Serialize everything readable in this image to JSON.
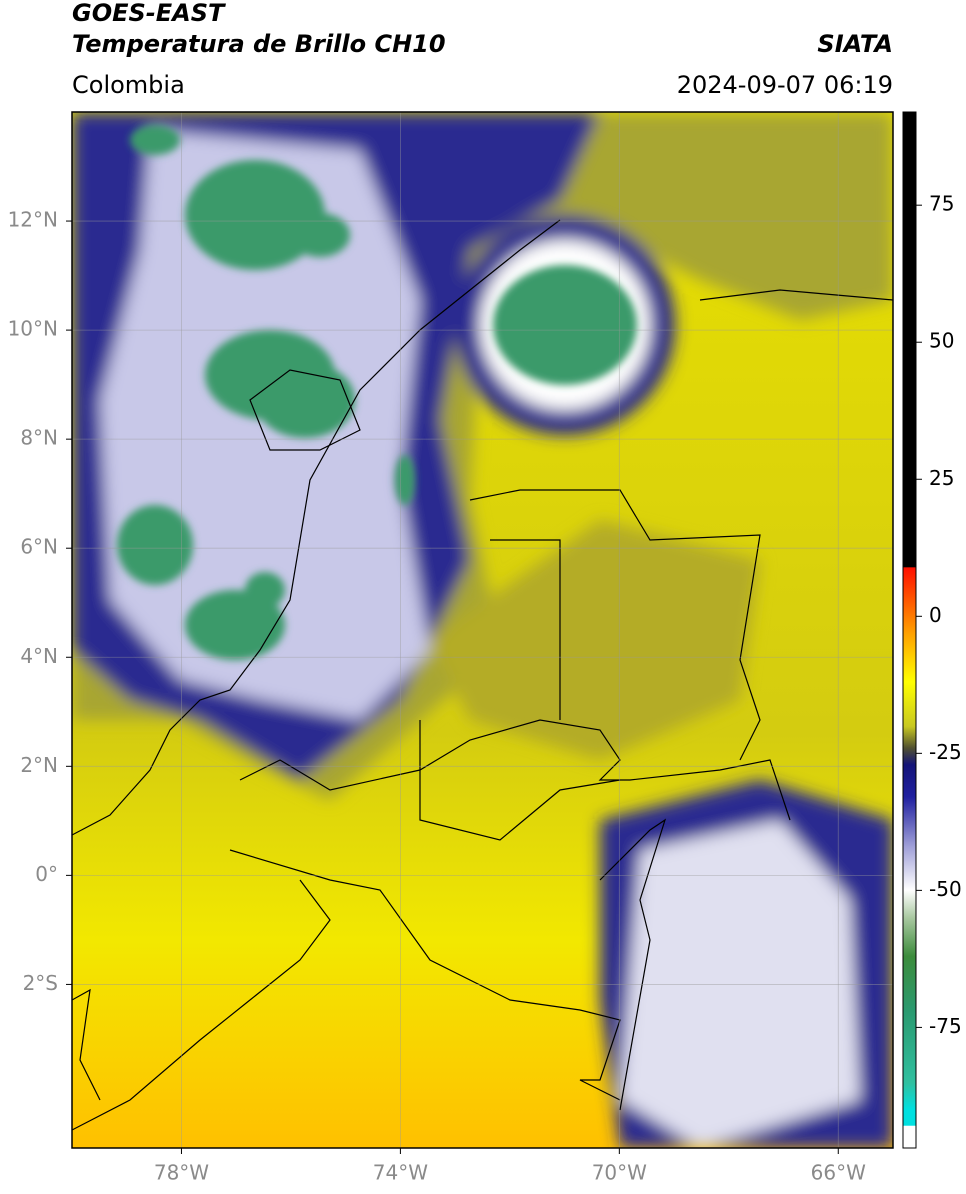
{
  "header": {
    "title_line1": "GOES-EAST",
    "title_line2": "Temperatura de Brillo CH10",
    "region": "Colombia",
    "brand": "SIATA",
    "datetime": "2024-09-07 06:19"
  },
  "map": {
    "xlim": [
      -80,
      -65
    ],
    "ylim": [
      -5,
      14
    ],
    "xticks": [
      {
        "value": -78,
        "label": "78°W"
      },
      {
        "value": -74,
        "label": "74°W"
      },
      {
        "value": -70,
        "label": "70°W"
      },
      {
        "value": -66,
        "label": "66°W"
      }
    ],
    "yticks": [
      {
        "value": 12,
        "label": "12°N"
      },
      {
        "value": 10,
        "label": "10°N"
      },
      {
        "value": 8,
        "label": "8°N"
      },
      {
        "value": 6,
        "label": "6°N"
      },
      {
        "value": 4,
        "label": "4°N"
      },
      {
        "value": 2,
        "label": "2°N"
      },
      {
        "value": 0,
        "label": "0°"
      },
      {
        "value": -2,
        "label": "2°S"
      }
    ],
    "grid": true
  },
  "colorbar": {
    "lim": [
      -97,
      92
    ],
    "ticks": [
      75,
      50,
      25,
      0,
      -25,
      -50,
      -75
    ]
  }
}
